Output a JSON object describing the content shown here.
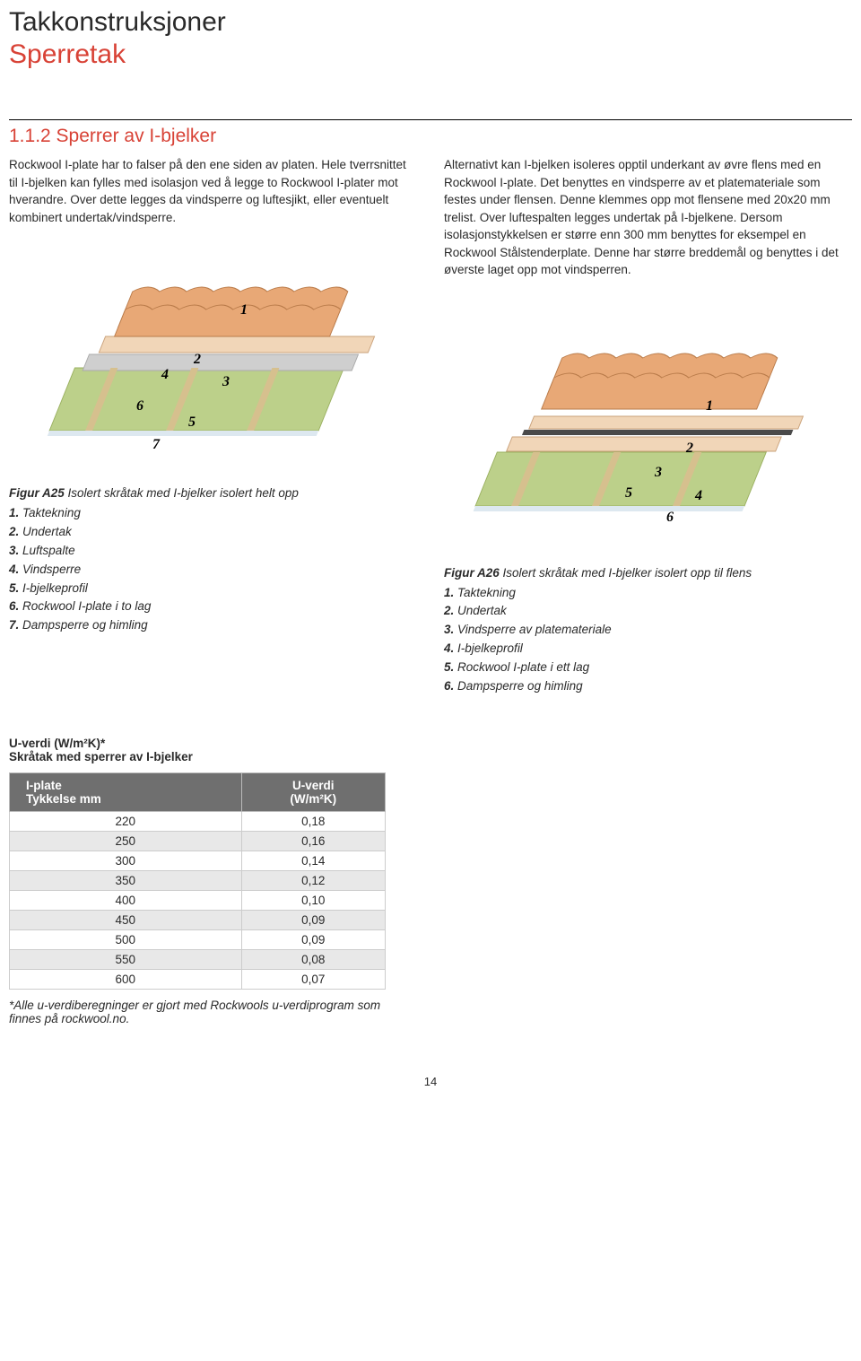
{
  "header": {
    "title": "Takkonstruksjoner",
    "subtitle": "Sperretak",
    "subtitle_color": "#d84236"
  },
  "section": {
    "heading": "1.1.2 Sperrer av I-bjelker",
    "heading_color": "#d84236",
    "left_para": "Rockwool I-plate har to falser på den ene siden av platen. Hele tverrsnittet til I-bjelken kan fylles med isolasjon ved å legge to Rockwool I-plater mot hverandre. Over dette legges da vindsperre og luftesjikt, eller eventuelt kombinert undertak/vindsperre.",
    "right_para": "Alternativt kan I-bjelken isoleres opptil underkant av øvre flens med en Rockwool I-plate. Det benyttes en vindsperre av et platemateriale som festes under flensen. Denne klemmes opp mot flensene med 20x20 mm trelist. Over luftespalten legges undertak på I-bjelkene. Dersom isolasjonstykkelsen er større enn 300 mm benyttes for eksempel en Rockwool Stålstenderplate. Denne har større breddemål og benyttes i det øverste laget opp mot vindsperren."
  },
  "figA25": {
    "label": "Figur A25",
    "desc": "Isolert skråtak med I-bjelker isolert helt opp",
    "items": [
      "Taktekning",
      "Undertak",
      "Luftspalte",
      "Vindsperre",
      "I-bjelkeprofil",
      "Rockwool I-plate i to lag",
      "Dampsperre og himling"
    ],
    "diagram": {
      "tile_fill": "#e8a876",
      "tile_stroke": "#b97b4a",
      "board_fill": "#f1d6b8",
      "board_stroke": "#c9a17a",
      "deck_fill": "#cfcfcf",
      "insulation_fill": "#bcd08a",
      "insulation_stroke": "#9ab060",
      "num_font": "bold italic 16px Georgia, serif"
    }
  },
  "figA26": {
    "label": "Figur A26",
    "desc": "Isolert skråtak med I-bjelker isolert opp til flens",
    "items": [
      "Taktekning",
      "Undertak",
      "Vindsperre av platemateriale",
      "I-bjelkeprofil",
      "Rockwool I-plate i ett lag",
      "Dampsperre og himling"
    ],
    "diagram": {
      "tile_fill": "#e8a876",
      "tile_stroke": "#b97b4a",
      "dark_fill": "#4a4a4a",
      "board_fill": "#f1d6b8",
      "board_stroke": "#c9a17a",
      "insulation_fill": "#bcd08a",
      "insulation_stroke": "#9ab060",
      "num_font": "bold italic 16px Georgia, serif"
    }
  },
  "table": {
    "heading1": "U-verdi (W/m²K)*",
    "heading2": "Skråtak med sperrer av I-bjelker",
    "col1_l1": "I-plate",
    "col1_l2": "Tykkelse mm",
    "col2_l1": "U-verdi",
    "col2_l2": "(W/m²K)",
    "rows": [
      [
        "220",
        "0,18"
      ],
      [
        "250",
        "0,16"
      ],
      [
        "300",
        "0,14"
      ],
      [
        "350",
        "0,12"
      ],
      [
        "400",
        "0,10"
      ],
      [
        "450",
        "0,09"
      ],
      [
        "500",
        "0,09"
      ],
      [
        "550",
        "0,08"
      ],
      [
        "600",
        "0,07"
      ]
    ],
    "alt_row_bg": "#e8e8e8"
  },
  "footnote": "*Alle u-verdiberegninger er gjort med Rockwools u-verdiprogram som finnes på rockwool.no.",
  "page_number": "14"
}
